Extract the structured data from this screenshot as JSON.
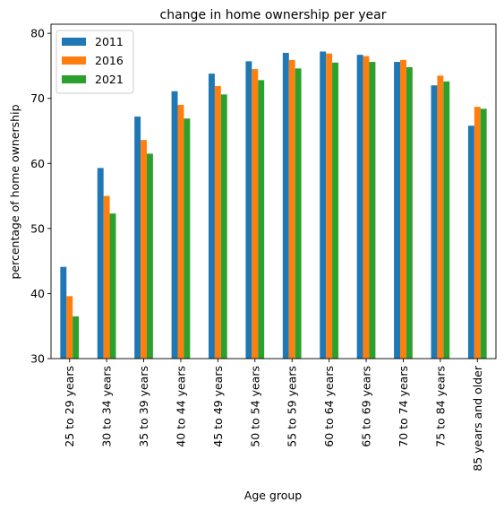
{
  "chart_data": {
    "type": "bar",
    "title": "change in home ownership per year",
    "xlabel": "Age group",
    "ylabel": "percentage of home ownership",
    "ylim": [
      30,
      81.4
    ],
    "yticks": [
      30,
      40,
      50,
      60,
      70,
      80
    ],
    "grid": false,
    "legend_position": "upper left",
    "categories": [
      "25 to 29 years",
      "30 to 34 years",
      "35 to 39 years",
      "40 to 44 years",
      "45 to 49 years",
      "50 to 54 years",
      "55 to 59 years",
      "60 to 64 years",
      "65 to 69 years",
      "70 to 74 years",
      "75 to 84 years",
      "85 years and older"
    ],
    "series": [
      {
        "name": "2011",
        "color": "#1f77b4",
        "values": [
          44.1,
          59.3,
          67.2,
          71.1,
          73.8,
          75.7,
          77.0,
          77.2,
          76.7,
          75.6,
          72.0,
          65.8
        ]
      },
      {
        "name": "2016",
        "color": "#ff7f0e",
        "values": [
          39.6,
          55.0,
          63.6,
          69.0,
          71.9,
          74.5,
          75.9,
          76.9,
          76.5,
          75.9,
          73.5,
          68.7
        ]
      },
      {
        "name": "2021",
        "color": "#2ca02c",
        "values": [
          36.5,
          52.3,
          61.5,
          66.9,
          70.6,
          72.8,
          74.6,
          75.5,
          75.6,
          74.8,
          72.6,
          68.4
        ]
      }
    ]
  }
}
